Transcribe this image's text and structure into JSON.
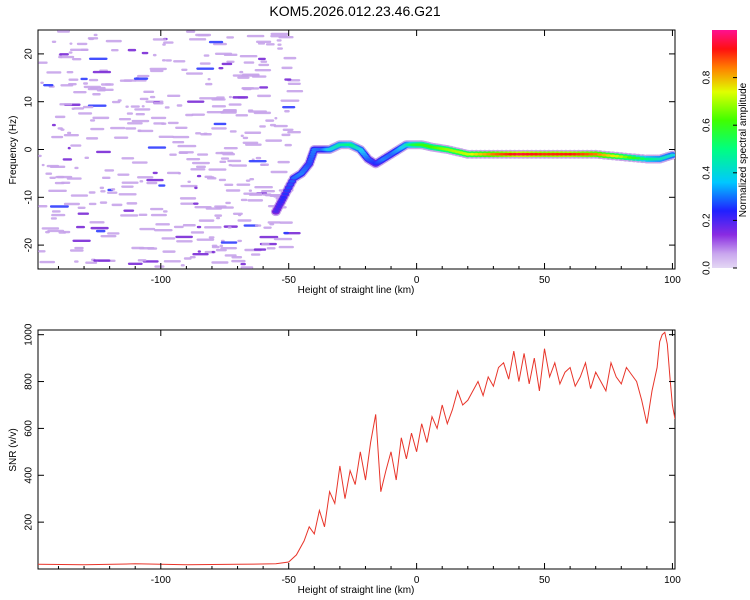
{
  "title": "KOM5.2026.012.23.46.G21",
  "colors": {
    "snr_line": "#e8352a",
    "spec_purple": "#c7a3ea",
    "spec_violet": "#7a2ad6",
    "spec_blue": "#2f3cff",
    "spec_cyan": "#2bd8f0",
    "spec_green": "#20e040",
    "spec_yellow": "#f0f020",
    "spec_red": "#ff1010"
  },
  "chart_data": [
    {
      "type": "heatmap",
      "xlabel": "Height of straight line (km)",
      "ylabel": "Frequency (Hz)",
      "xlim": [
        -148,
        101
      ],
      "ylim": [
        -25,
        25
      ],
      "xticks": [
        -100,
        -50,
        0,
        50,
        100
      ],
      "xtick_labels": [
        "-100",
        "-50",
        "0",
        "50",
        "100"
      ],
      "yticks": [
        -20,
        -10,
        0,
        10,
        20
      ],
      "ytick_labels": [
        "-20",
        "-10",
        "0",
        "10",
        "20"
      ],
      "trace": {
        "x": [
          -55,
          -52,
          -48,
          -45,
          -42,
          -40,
          -37,
          -34,
          -30,
          -26,
          -22,
          -19,
          -16,
          -13,
          -10,
          -7,
          -4,
          -1,
          2,
          6,
          12,
          20,
          30,
          40,
          50,
          60,
          70,
          80,
          90,
          95,
          101
        ],
        "freq": [
          -13,
          -10,
          -6,
          -5,
          -3,
          0,
          0,
          0,
          1,
          1,
          0,
          -2,
          -3,
          -2,
          -1,
          0,
          1,
          1,
          1,
          0.5,
          0,
          -1,
          -1,
          -1,
          -1,
          -1,
          -1,
          -1.5,
          -2,
          -2,
          -1
        ],
        "amplitude": [
          0.2,
          0.25,
          0.3,
          0.32,
          0.28,
          0.32,
          0.3,
          0.4,
          0.45,
          0.5,
          0.4,
          0.3,
          0.25,
          0.32,
          0.3,
          0.35,
          0.42,
          0.55,
          0.6,
          0.62,
          0.68,
          0.72,
          0.85,
          0.95,
          0.9,
          0.92,
          0.85,
          0.7,
          0.5,
          0.45,
          0.4
        ]
      },
      "colorbar": {
        "label": "Normalized spectral amplitude",
        "range": [
          0,
          1
        ],
        "ticks": [
          0.0,
          0.2,
          0.4,
          0.6,
          0.8
        ],
        "tick_labels": [
          "0.0",
          "0.2",
          "0.4",
          "0.6",
          "0.8"
        ]
      }
    },
    {
      "type": "line",
      "xlabel": "Height of straight line (km)",
      "ylabel": "SNR (v/v)",
      "xlim": [
        -148,
        101
      ],
      "ylim": [
        0,
        1020
      ],
      "xticks": [
        -100,
        -50,
        0,
        50,
        100
      ],
      "xtick_labels": [
        "-100",
        "-50",
        "0",
        "50",
        "100"
      ],
      "yticks": [
        200,
        400,
        600,
        800,
        1000
      ],
      "ytick_labels": [
        "200",
        "400",
        "600",
        "800",
        "1000"
      ],
      "series": [
        {
          "name": "SNR",
          "x": [
            -148,
            -130,
            -110,
            -90,
            -70,
            -55,
            -50,
            -47,
            -44,
            -42,
            -40,
            -38,
            -36,
            -34,
            -32,
            -30,
            -28,
            -26,
            -24,
            -22,
            -20,
            -18,
            -16,
            -14,
            -12,
            -10,
            -8,
            -6,
            -4,
            -2,
            0,
            2,
            4,
            6,
            8,
            10,
            12,
            14,
            16,
            18,
            20,
            22,
            24,
            26,
            28,
            30,
            32,
            34,
            36,
            38,
            40,
            42,
            44,
            46,
            48,
            50,
            52,
            54,
            56,
            58,
            60,
            62,
            64,
            66,
            68,
            70,
            72,
            74,
            76,
            78,
            80,
            82,
            84,
            86,
            88,
            90,
            92,
            94,
            95,
            96,
            97,
            98,
            99,
            100,
            101
          ],
          "values": [
            20,
            18,
            22,
            18,
            20,
            22,
            30,
            60,
            120,
            180,
            150,
            250,
            180,
            330,
            280,
            440,
            300,
            420,
            360,
            500,
            380,
            540,
            660,
            330,
            420,
            500,
            380,
            560,
            470,
            580,
            500,
            620,
            540,
            650,
            600,
            700,
            620,
            680,
            760,
            700,
            720,
            760,
            800,
            740,
            820,
            780,
            860,
            880,
            810,
            930,
            800,
            920,
            790,
            900,
            760,
            940,
            820,
            880,
            790,
            840,
            860,
            780,
            820,
            880,
            770,
            840,
            800,
            760,
            880,
            820,
            790,
            860,
            830,
            800,
            720,
            620,
            760,
            860,
            970,
            1000,
            1010,
            960,
            820,
            700,
            640
          ]
        }
      ]
    }
  ]
}
